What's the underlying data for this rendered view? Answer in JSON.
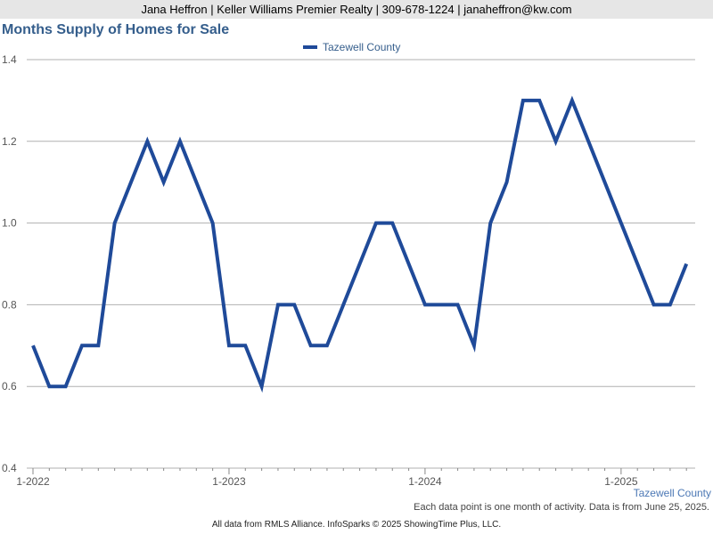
{
  "header": {
    "contact": "Jana Heffron | Keller Williams Premier Realty | 309-678-1224 | janaheffron@kw.com"
  },
  "chart_data": {
    "type": "line",
    "title": "Months Supply of Homes for Sale",
    "xlabel": "",
    "ylabel": "",
    "ylim": [
      0.4,
      1.4
    ],
    "yticks": [
      "0.4",
      "0.6",
      "0.8",
      "1.0",
      "1.2",
      "1.4"
    ],
    "ytick_values": [
      0.4,
      0.6,
      0.8,
      1.0,
      1.2,
      1.4
    ],
    "xticks": [
      "1-2022",
      "1-2023",
      "1-2024",
      "1-2025"
    ],
    "x": [
      "1-2022",
      "2-2022",
      "3-2022",
      "4-2022",
      "5-2022",
      "6-2022",
      "7-2022",
      "8-2022",
      "9-2022",
      "10-2022",
      "11-2022",
      "12-2022",
      "1-2023",
      "2-2023",
      "3-2023",
      "4-2023",
      "5-2023",
      "6-2023",
      "7-2023",
      "8-2023",
      "9-2023",
      "10-2023",
      "11-2023",
      "12-2023",
      "1-2024",
      "2-2024",
      "3-2024",
      "4-2024",
      "5-2024",
      "6-2024",
      "7-2024",
      "8-2024",
      "9-2024",
      "10-2024",
      "11-2024",
      "12-2024",
      "1-2025",
      "2-2025",
      "3-2025",
      "4-2025",
      "5-2025"
    ],
    "grid": true,
    "legend_position": "top-center",
    "series": [
      {
        "name": "Tazewell County",
        "color": "#1f4a99",
        "values": [
          0.7,
          0.6,
          0.6,
          0.7,
          0.7,
          1.0,
          1.1,
          1.2,
          1.1,
          1.2,
          1.1,
          1.0,
          0.7,
          0.7,
          0.6,
          0.8,
          0.8,
          0.7,
          0.7,
          0.8,
          0.9,
          1.0,
          1.0,
          0.9,
          0.8,
          0.8,
          0.8,
          0.7,
          1.0,
          1.1,
          1.3,
          1.3,
          1.2,
          1.3,
          1.2,
          1.1,
          1.0,
          0.9,
          0.8,
          0.8,
          0.9
        ]
      }
    ]
  },
  "footer": {
    "series_caption": "Tazewell County",
    "note": "Each data point is one month of activity. Data is from June 25, 2025.",
    "source": "All data from RMLS Alliance. InfoSparks © 2025 ShowingTime Plus, LLC."
  }
}
